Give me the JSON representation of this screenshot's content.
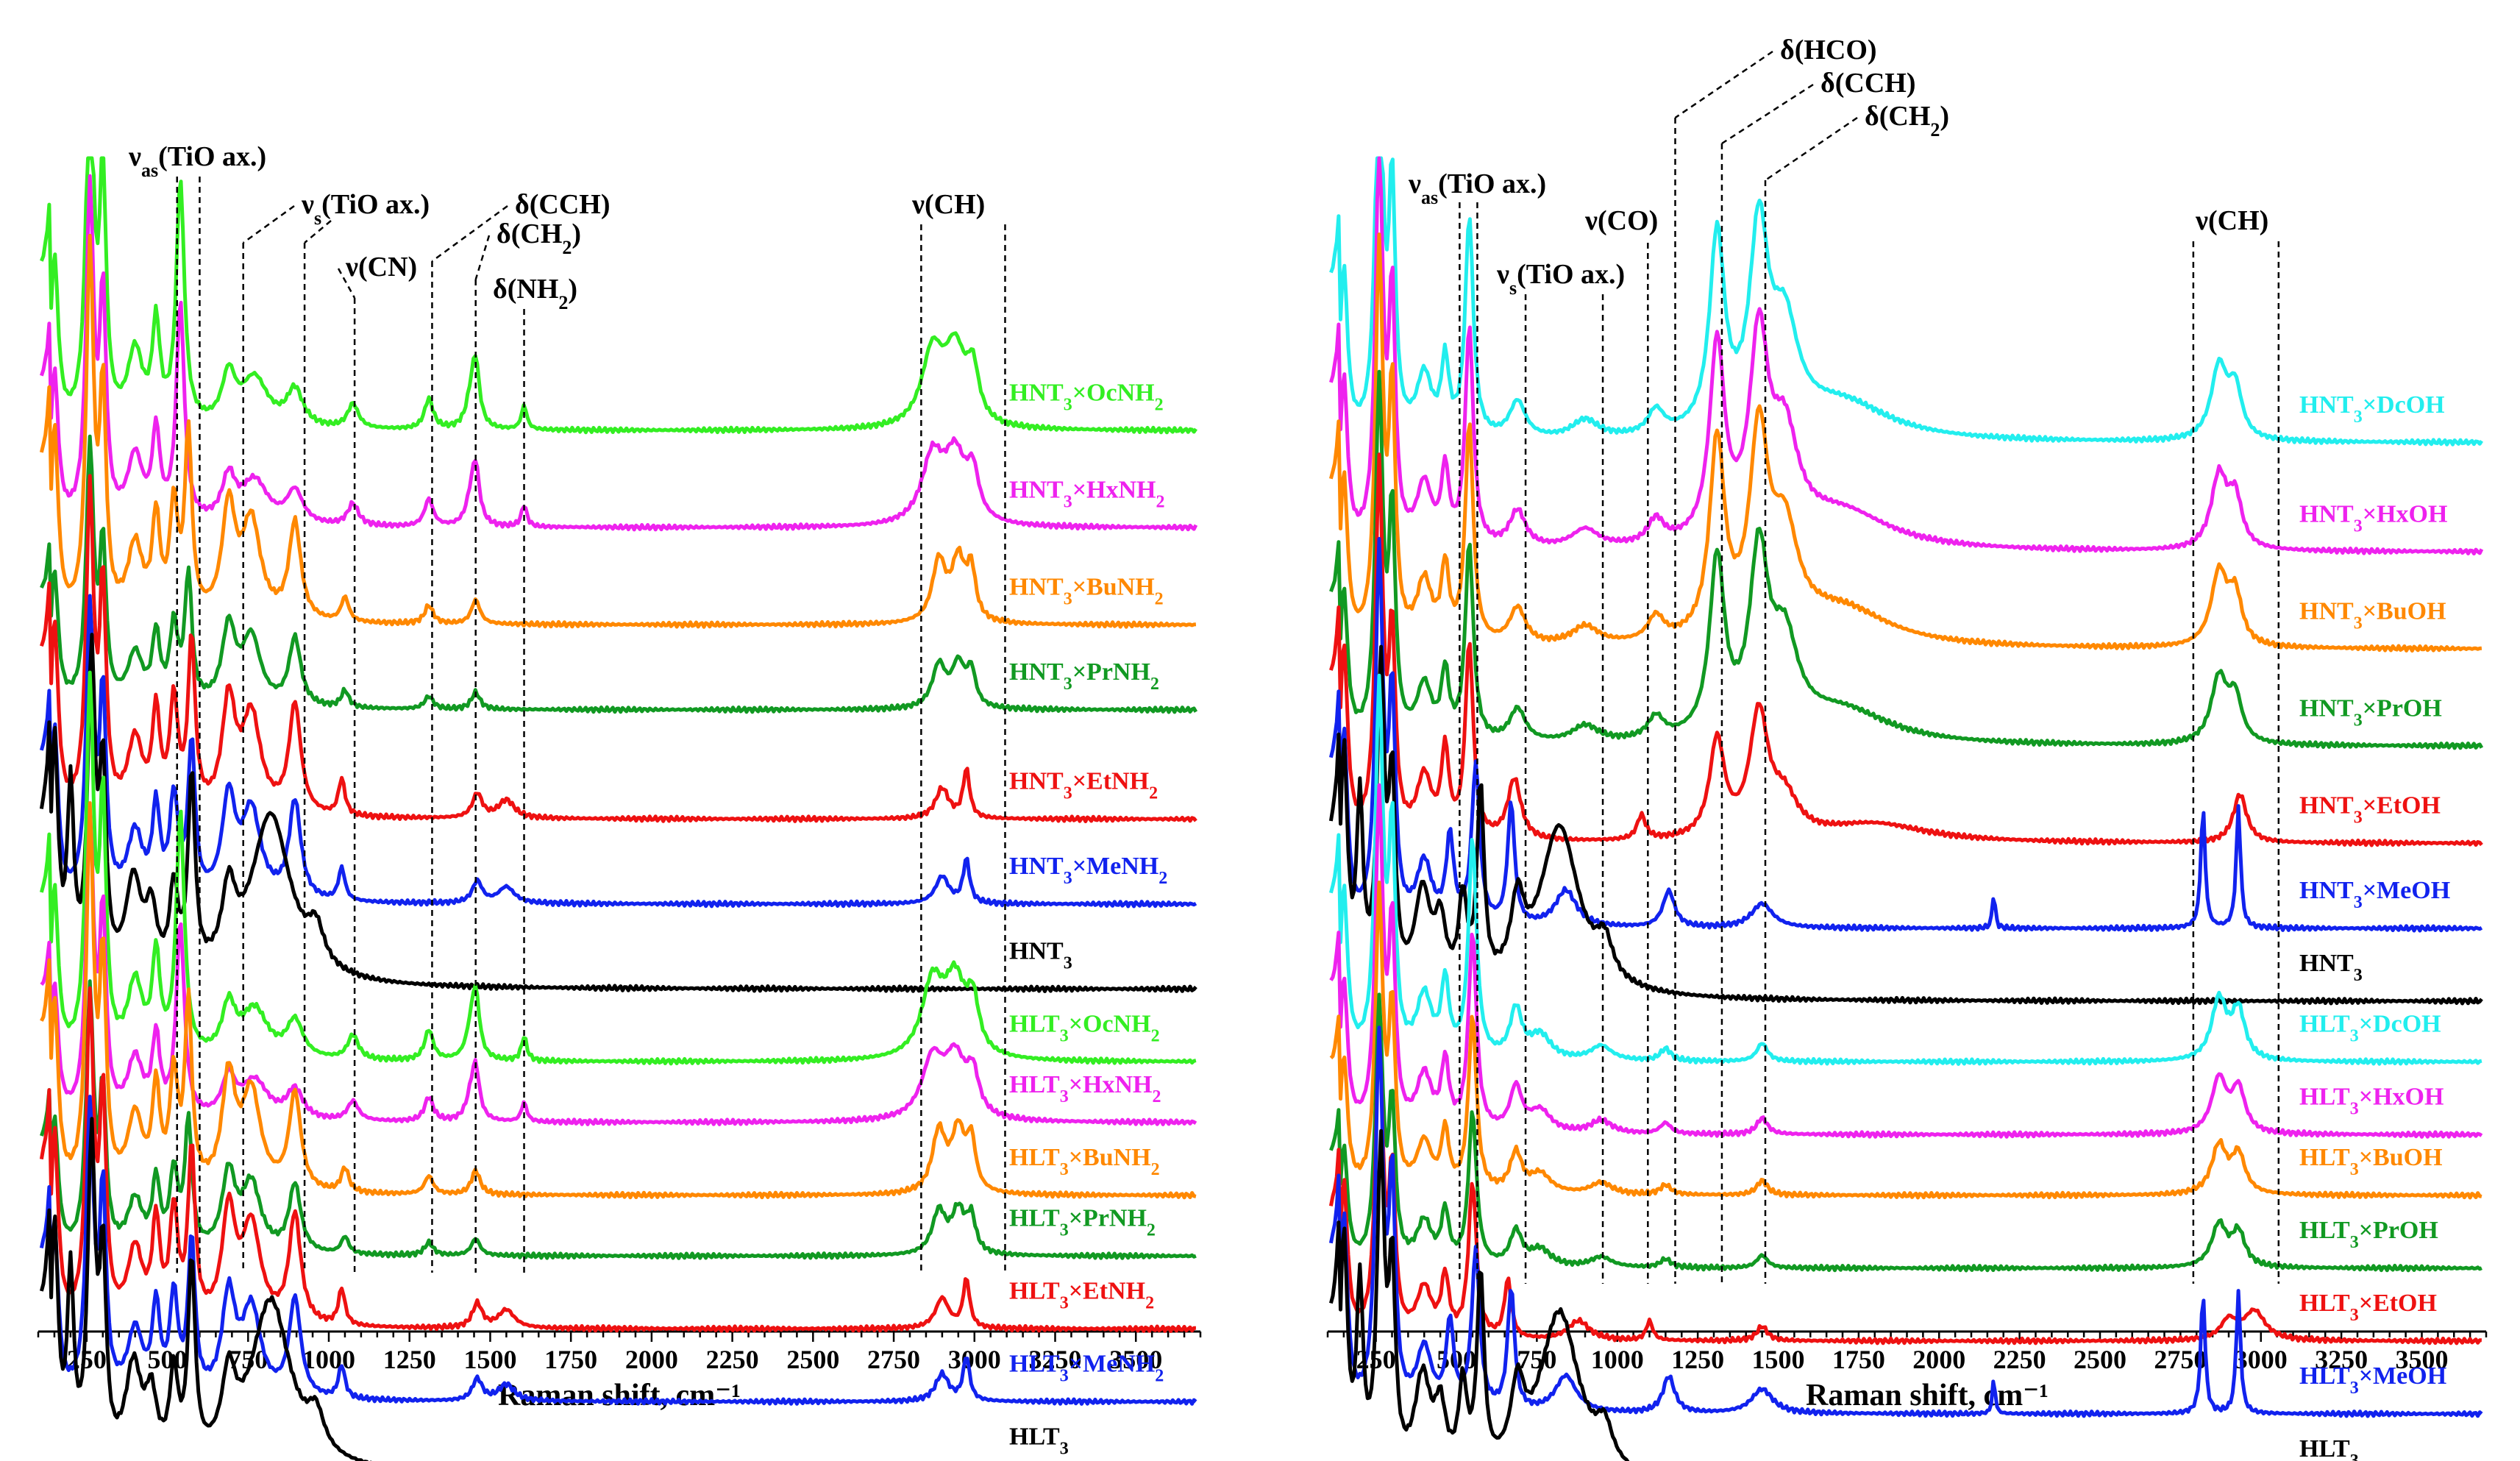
{
  "chart_data": [
    {
      "type": "line",
      "id": "left",
      "xlabel": "Raman shift, cm⁻¹",
      "xlim": [
        100,
        3700
      ],
      "xticks": [
        250,
        500,
        750,
        1000,
        1250,
        1500,
        1750,
        2000,
        2250,
        2500,
        2750,
        3000,
        3250,
        3500
      ],
      "ylim": [
        0,
        100
      ],
      "grid": false,
      "legend": "labels at right end of each trace",
      "series": [
        {
          "name": "HNT3×OcNH2",
          "label_main": "HNT",
          "label_sub": "3",
          "label_main2": "×OcNH",
          "label_sub2": "2",
          "color": "#33ee22",
          "offset": 73,
          "profile": "amine_long",
          "scale": 1.0
        },
        {
          "name": "HNT3×HxNH2",
          "label_main": "HNT",
          "label_sub": "3",
          "label_main2": "×HxNH",
          "label_sub2": "2",
          "color": "#ee22ee",
          "offset": 65,
          "profile": "amine_long",
          "scale": 0.9
        },
        {
          "name": "HNT3×BuNH2",
          "label_main": "HNT",
          "label_sub": "3",
          "label_main2": "×BuNH",
          "label_sub2": "2",
          "color": "#ff8800",
          "offset": 57,
          "profile": "amine_mid",
          "scale": 1.0
        },
        {
          "name": "HNT3×PrNH2",
          "label_main": "HNT",
          "label_sub": "3",
          "label_main2": "×PrNH",
          "label_sub2": "2",
          "color": "#119922",
          "offset": 50,
          "profile": "amine_mid",
          "scale": 0.7
        },
        {
          "name": "HNT3×EtNH2",
          "label_main": "HNT",
          "label_sub": "3",
          "label_main2": "×EtNH",
          "label_sub2": "2",
          "color": "#ee1111",
          "offset": 41,
          "profile": "amine_short",
          "scale": 1.0
        },
        {
          "name": "HNT3×MeNH2",
          "label_main": "HNT",
          "label_sub": "3",
          "label_main2": "×MeNH",
          "label_sub2": "2",
          "color": "#1122ee",
          "offset": 34,
          "profile": "amine_short",
          "scale": 0.9
        },
        {
          "name": "HNT3",
          "label_main": "HNT",
          "label_sub": "3",
          "label_main2": "",
          "label_sub2": "",
          "color": "#000000",
          "offset": 27,
          "profile": "base",
          "scale": 1.0
        },
        {
          "name": "HLT3×OcNH2",
          "label_main": "HLT",
          "label_sub": "3",
          "label_main2": "×OcNH",
          "label_sub2": "2",
          "color": "#33ee22",
          "offset": 21,
          "profile": "amine_long",
          "scale": 1.0
        },
        {
          "name": "HLT3×HxNH2",
          "label_main": "HLT",
          "label_sub": "3",
          "label_main2": "×HxNH",
          "label_sub2": "2",
          "color": "#ee22ee",
          "offset": 16,
          "profile": "amine_long",
          "scale": 0.8
        },
        {
          "name": "HLT3×BuNH2",
          "label_main": "HLT",
          "label_sub": "3",
          "label_main2": "×BuNH",
          "label_sub2": "2",
          "color": "#ff8800",
          "offset": 10,
          "profile": "amine_mid",
          "scale": 1.0
        },
        {
          "name": "HLT3×PrNH2",
          "label_main": "HLT",
          "label_sub": "3",
          "label_main2": "×PrNH",
          "label_sub2": "2",
          "color": "#119922",
          "offset": 5,
          "profile": "amine_mid",
          "scale": 0.7
        },
        {
          "name": "HLT3×EtNH2",
          "label_main": "HLT",
          "label_sub": "3",
          "label_main2": "×EtNH",
          "label_sub2": "2",
          "color": "#ee1111",
          "offset": -1,
          "profile": "amine_short",
          "scale": 1.0
        },
        {
          "name": "HLT3×MeNH2",
          "label_main": "HLT",
          "label_sub": "3",
          "label_main2": "×MeNH",
          "label_sub2": "2",
          "color": "#1122ee",
          "offset": -7,
          "profile": "amine_short",
          "scale": 0.9
        },
        {
          "name": "HLT3",
          "label_main": "HLT",
          "label_sub": "3",
          "label_main2": "",
          "label_sub2": "",
          "color": "#000000",
          "offset": -13,
          "profile": "base",
          "scale": 1.0
        }
      ],
      "annotations": [
        {
          "main": "ν",
          "sub": "as",
          "rest": "(TiO ax.)",
          "lines": [
            530,
            600
          ]
        },
        {
          "main": "ν",
          "sub": "s",
          "rest": "(TiO ax.)",
          "lines": [
            735,
            925
          ]
        },
        {
          "main": "ν(CN)",
          "sub": "",
          "rest": "",
          "lines": [
            1080
          ]
        },
        {
          "main": "δ(CCH)",
          "sub": "",
          "rest": "",
          "lines": [
            1320
          ]
        },
        {
          "main": "δ(CH",
          "sub": "2",
          "rest": ")",
          "lines": [
            1455
          ]
        },
        {
          "main": "δ(NH",
          "sub": "2",
          "rest": ")",
          "lines": [
            1605
          ]
        },
        {
          "main": "ν(CH)",
          "sub": "",
          "rest": "",
          "lines": [
            2835,
            3095
          ]
        }
      ]
    },
    {
      "type": "line",
      "id": "right",
      "xlabel": "Raman shift, cm⁻¹",
      "xlim": [
        100,
        3700
      ],
      "xticks": [
        250,
        500,
        750,
        1000,
        1250,
        1500,
        1750,
        2000,
        2250,
        2500,
        2750,
        3000,
        3250,
        3500
      ],
      "ylim": [
        0,
        100
      ],
      "grid": false,
      "legend": "labels at right end of each trace",
      "series": [
        {
          "name": "HNT3×DcOH",
          "label_main": "HNT",
          "label_sub": "3",
          "label_main2": "×DcOH",
          "label_sub2": "",
          "color": "#22eeee",
          "offset": 72,
          "profile": "alc_long",
          "scale": 1.0
        },
        {
          "name": "HNT3×HxOH",
          "label_main": "HNT",
          "label_sub": "3",
          "label_main2": "×HxOH",
          "label_sub2": "",
          "color": "#ee22ee",
          "offset": 63,
          "profile": "alc_long",
          "scale": 1.0
        },
        {
          "name": "HNT3×BuOH",
          "label_main": "HNT",
          "label_sub": "3",
          "label_main2": "×BuOH",
          "label_sub2": "",
          "color": "#ff8800",
          "offset": 55,
          "profile": "alc_long",
          "scale": 1.0
        },
        {
          "name": "HNT3×PrOH",
          "label_main": "HNT",
          "label_sub": "3",
          "label_main2": "×PrOH",
          "label_sub2": "",
          "color": "#119922",
          "offset": 47,
          "profile": "alc_long",
          "scale": 0.9
        },
        {
          "name": "HNT3×EtOH",
          "label_main": "HNT",
          "label_sub": "3",
          "label_main2": "×EtOH",
          "label_sub2": "",
          "color": "#ee1111",
          "offset": 39,
          "profile": "alc_mid",
          "scale": 1.0
        },
        {
          "name": "HNT3×MeOH",
          "label_main": "HNT",
          "label_sub": "3",
          "label_main2": "×MeOH",
          "label_sub2": "",
          "color": "#1122ee",
          "offset": 32,
          "profile": "alc_me",
          "scale": 1.0
        },
        {
          "name": "HNT3",
          "label_main": "HNT",
          "label_sub": "3",
          "label_main2": "",
          "label_sub2": "",
          "color": "#000000",
          "offset": 26,
          "profile": "base",
          "scale": 1.0
        },
        {
          "name": "HLT3×DcOH",
          "label_main": "HLT",
          "label_sub": "3",
          "label_main2": "×DcOH",
          "label_sub2": "",
          "color": "#22eeee",
          "offset": 21,
          "profile": "alc_flat",
          "scale": 1.0
        },
        {
          "name": "HLT3×HxOH",
          "label_main": "HLT",
          "label_sub": "3",
          "label_main2": "×HxOH",
          "label_sub2": "",
          "color": "#ee22ee",
          "offset": 15,
          "profile": "alc_flat",
          "scale": 0.9
        },
        {
          "name": "HLT3×BuOH",
          "label_main": "HLT",
          "label_sub": "3",
          "label_main2": "×BuOH",
          "label_sub2": "",
          "color": "#ff8800",
          "offset": 10,
          "profile": "alc_flat",
          "scale": 0.8
        },
        {
          "name": "HLT3×PrOH",
          "label_main": "HLT",
          "label_sub": "3",
          "label_main2": "×PrOH",
          "label_sub2": "",
          "color": "#119922",
          "offset": 4,
          "profile": "alc_flat",
          "scale": 0.7
        },
        {
          "name": "HLT3×EtOH",
          "label_main": "HLT",
          "label_sub": "3",
          "label_main2": "×EtOH",
          "label_sub2": "",
          "color": "#ee1111",
          "offset": -2,
          "profile": "alc_flat_et",
          "scale": 0.8
        },
        {
          "name": "HLT3×MeOH",
          "label_main": "HLT",
          "label_sub": "3",
          "label_main2": "×MeOH",
          "label_sub2": "",
          "color": "#1122ee",
          "offset": -8,
          "profile": "alc_me",
          "scale": 1.0
        },
        {
          "name": "HLT3",
          "label_main": "HLT",
          "label_sub": "3",
          "label_main2": "",
          "label_sub2": "",
          "color": "#000000",
          "offset": -14,
          "profile": "base",
          "scale": 1.0
        }
      ],
      "annotations": [
        {
          "main": "ν",
          "sub": "as",
          "rest": "(TiO ax.)",
          "lines": [
            510,
            565
          ]
        },
        {
          "main": "ν",
          "sub": "s",
          "rest": "(TiO ax.)",
          "lines": [
            715,
            955
          ]
        },
        {
          "main": "ν(CO)",
          "sub": "",
          "rest": "",
          "lines": [
            1095
          ]
        },
        {
          "main": "δ(HCO)",
          "sub": "",
          "rest": "",
          "lines": [
            1180
          ]
        },
        {
          "main": "δ(CCH)",
          "sub": "",
          "rest": "",
          "lines": [
            1325
          ]
        },
        {
          "main": "δ(CH",
          "sub": "2",
          "rest": ")",
          "lines": [
            1460
          ]
        },
        {
          "main": "ν(CH)",
          "sub": "",
          "rest": "",
          "lines": [
            2790,
            3055
          ]
        }
      ]
    }
  ]
}
